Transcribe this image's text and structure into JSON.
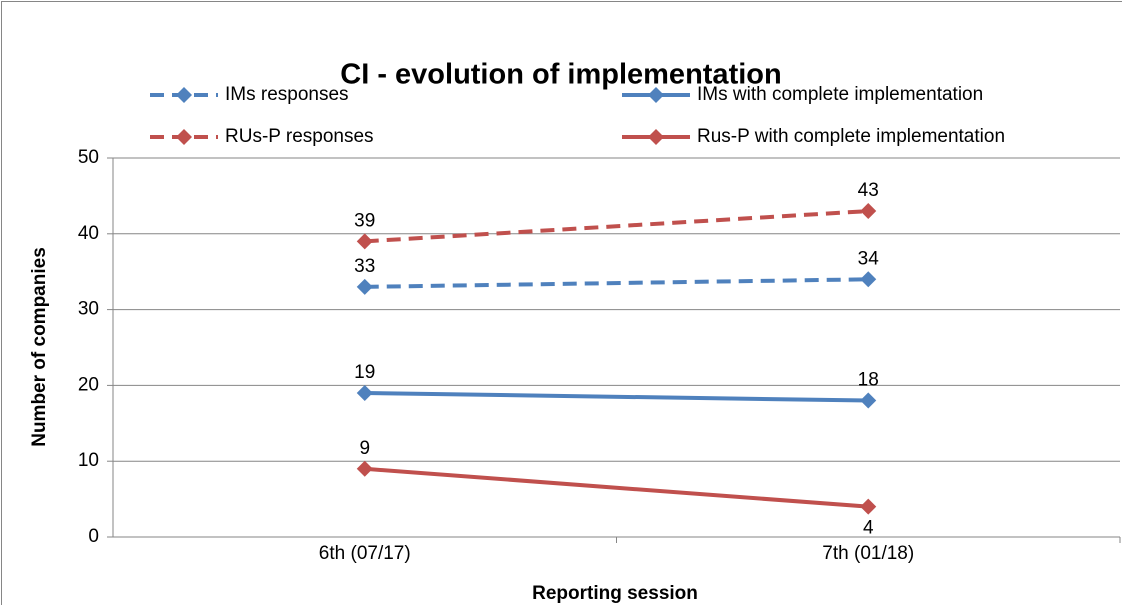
{
  "chart_data": {
    "type": "line",
    "title": "CI - evolution of implementation",
    "x_label": "Reporting session",
    "y_label": "Number of companies",
    "categories": [
      "6th (07/17)",
      "7th (01/18)"
    ],
    "series": [
      {
        "name": "IMs responses",
        "color": "#4f81bd",
        "dashed": true,
        "values": [
          33,
          34
        ]
      },
      {
        "name": "IMs with complete implementation",
        "color": "#4f81bd",
        "dashed": false,
        "values": [
          19,
          18
        ]
      },
      {
        "name": "RUs-P responses",
        "color": "#c0504d",
        "dashed": true,
        "values": [
          39,
          43
        ]
      },
      {
        "name": "Rus-P with complete implementation",
        "color": "#c0504d",
        "dashed": false,
        "values": [
          9,
          4
        ]
      }
    ],
    "ylim": [
      0,
      50
    ],
    "yticks": [
      0,
      10,
      20,
      30,
      40,
      50
    ],
    "grid": true,
    "legend": "top"
  }
}
